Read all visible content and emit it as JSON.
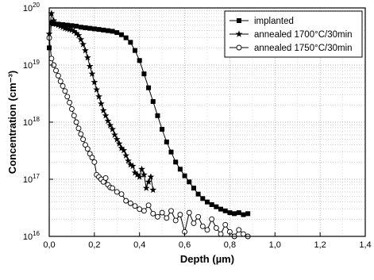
{
  "chart_data": {
    "type": "scatter",
    "title": "",
    "xlabel": "Depth (µm)",
    "ylabel": "Concentration (cm⁻³)",
    "xlim": [
      0.0,
      1.4
    ],
    "ylim": [
      1e+16,
      1e+20
    ],
    "yscale": "log",
    "grid": true,
    "legend_position": "top-right",
    "x_ticks": [
      "0,0",
      "0,2",
      "0,4",
      "0,6",
      "0,8",
      "1,0",
      "1,2",
      "1,4"
    ],
    "y_ticks": [
      {
        "base": "10",
        "exp": "16"
      },
      {
        "base": "10",
        "exp": "17"
      },
      {
        "base": "10",
        "exp": "18"
      },
      {
        "base": "10",
        "exp": "19"
      },
      {
        "base": "10",
        "exp": "20"
      }
    ],
    "series": [
      {
        "name": "implanted",
        "marker": "filled-square",
        "color": "#000000",
        "x": [
          0.0,
          0.01,
          0.02,
          0.04,
          0.06,
          0.08,
          0.1,
          0.12,
          0.14,
          0.16,
          0.18,
          0.2,
          0.22,
          0.24,
          0.26,
          0.28,
          0.3,
          0.32,
          0.34,
          0.36,
          0.38,
          0.4,
          0.42,
          0.44,
          0.46,
          0.48,
          0.5,
          0.52,
          0.54,
          0.56,
          0.58,
          0.6,
          0.62,
          0.64,
          0.66,
          0.68,
          0.7,
          0.72,
          0.74,
          0.76,
          0.78,
          0.8,
          0.82,
          0.84,
          0.86,
          0.88
        ],
        "y": [
          2e+19,
          5.5e+19,
          5.3e+19,
          5.2e+19,
          5.1e+19,
          5e+19,
          4.9e+19,
          4.8e+19,
          4.6e+19,
          4.5e+19,
          4.4e+19,
          4.3e+19,
          4.2e+19,
          4.1e+19,
          4e+19,
          3.9e+19,
          3.7e+19,
          3.4e+19,
          3e+19,
          2.5e+19,
          1.8e+19,
          1.2e+19,
          7e+18,
          4e+18,
          2.3e+18,
          1.3e+18,
          7.5e+17,
          4.5e+17,
          3e+17,
          2e+17,
          1.5e+17,
          1.15e+17,
          9e+16,
          7e+16,
          5.5e+16,
          4.6e+16,
          4e+16,
          3.6e+16,
          3.3e+16,
          3e+16,
          2.8e+16,
          2.6e+16,
          2.5e+16,
          2.6e+16,
          2.4e+16,
          2.5e+16
        ]
      },
      {
        "name": "annealed 1700°C/30min",
        "marker": "star",
        "color": "#000000",
        "x": [
          0.0,
          0.01,
          0.02,
          0.03,
          0.04,
          0.05,
          0.06,
          0.07,
          0.08,
          0.09,
          0.1,
          0.11,
          0.12,
          0.13,
          0.14,
          0.15,
          0.16,
          0.17,
          0.18,
          0.19,
          0.2,
          0.21,
          0.22,
          0.23,
          0.24,
          0.25,
          0.26,
          0.27,
          0.28,
          0.29,
          0.3,
          0.31,
          0.32,
          0.33,
          0.34,
          0.35,
          0.36,
          0.37,
          0.38,
          0.39,
          0.4,
          0.41,
          0.42,
          0.43,
          0.44,
          0.45,
          0.46
        ],
        "y": [
          3.5e+19,
          8e+19,
          6e+19,
          5.2e+19,
          5e+19,
          4.8e+19,
          4.6e+19,
          4.4e+19,
          4.3e+19,
          4.2e+19,
          4.1e+19,
          3.9e+19,
          3.6e+19,
          3.3e+19,
          2.8e+19,
          2.3e+19,
          1.8e+19,
          1.35e+19,
          9.5e+18,
          7e+18,
          5e+18,
          3.7e+18,
          2.8e+18,
          2.1e+18,
          1.6e+18,
          1.3e+18,
          1.05e+18,
          8.8e+17,
          7.5e+17,
          6e+17,
          5e+17,
          4.2e+17,
          3.5e+17,
          3.2e+17,
          2.6e+17,
          2.1e+17,
          1.8e+17,
          1.7e+17,
          1.3e+17,
          1.2e+17,
          1.1e+17,
          1.5e+17,
          1.2e+17,
          7e+16,
          9e+16,
          1.1e+17,
          6.5e+16
        ]
      },
      {
        "name": "annealed 1750°C/30min",
        "marker": "open-circle",
        "color": "#000000",
        "x": [
          0.0,
          0.01,
          0.02,
          0.03,
          0.04,
          0.05,
          0.06,
          0.07,
          0.08,
          0.09,
          0.1,
          0.11,
          0.12,
          0.13,
          0.14,
          0.15,
          0.16,
          0.17,
          0.18,
          0.19,
          0.2,
          0.21,
          0.22,
          0.23,
          0.24,
          0.25,
          0.26,
          0.27,
          0.28,
          0.3,
          0.32,
          0.34,
          0.36,
          0.38,
          0.4,
          0.42,
          0.44,
          0.46,
          0.48,
          0.5,
          0.52,
          0.54,
          0.56,
          0.58,
          0.6,
          0.62,
          0.64,
          0.66,
          0.68,
          0.7,
          0.72,
          0.74,
          0.76,
          0.78,
          0.8,
          0.82,
          0.84,
          0.86,
          0.88
        ],
        "y": [
          3e+19,
          1.3e+19,
          1e+19,
          8e+18,
          6.5e+18,
          5.2e+18,
          4.3e+18,
          3.5e+18,
          2.8e+18,
          2.2e+18,
          1.7e+18,
          1.3e+18,
          1e+18,
          7.8e+17,
          6.2e+17,
          5e+17,
          4e+17,
          3.4e+17,
          2.8e+17,
          2.4e+17,
          2e+17,
          1.2e+17,
          1.1e+17,
          1e+17,
          9e+16,
          1.05e+17,
          8e+16,
          7.2e+16,
          7e+16,
          6e+16,
          5.5e+16,
          4.2e+16,
          3.8e+16,
          3.4e+16,
          3e+16,
          2.8e+16,
          3.5e+16,
          2.5e+16,
          2.2e+16,
          2.6e+16,
          2.1e+16,
          2.8e+16,
          1.9e+16,
          2.4e+16,
          1.2e+16,
          2.6e+16,
          1.7e+16,
          2.2e+16,
          1.5e+16,
          1.3e+16,
          2e+16,
          1.4e+16,
          1.1e+16,
          1.6e+16,
          1.2e+16,
          1e+16,
          1.3e+16,
          1.1e+16,
          1e+16
        ]
      }
    ]
  }
}
